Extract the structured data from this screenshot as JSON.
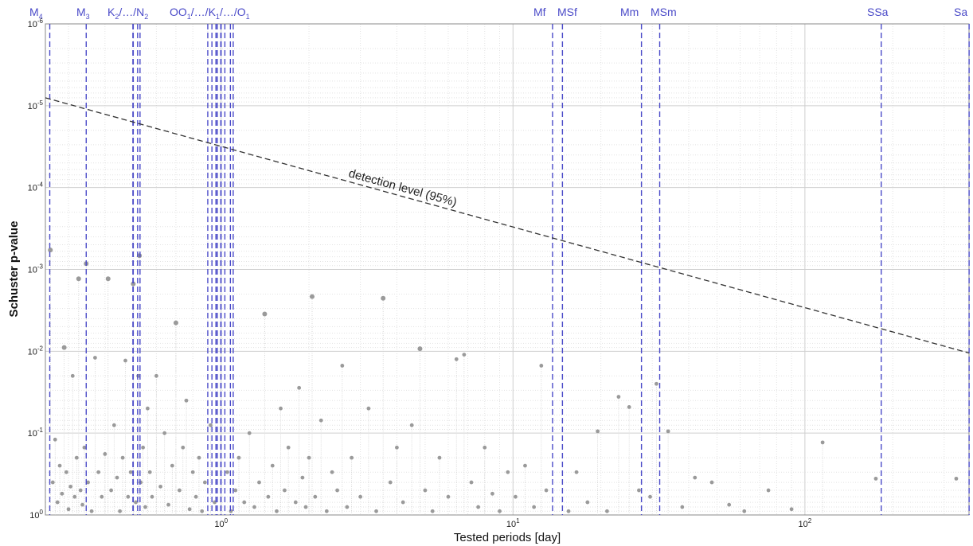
{
  "chart_data": {
    "type": "scatter",
    "title": "",
    "xlabel": "Tested periods [day]",
    "ylabel": "Schuster p-value",
    "x_scale": "log",
    "y_scale": "log",
    "y_reversed": true,
    "xlim": [
      0.25,
      365
    ],
    "ylim": [
      1e-06,
      1
    ],
    "grid": true,
    "x_ticks": [
      {
        "value": 1,
        "base": "10",
        "exp": "0"
      },
      {
        "value": 10,
        "base": "10",
        "exp": "1"
      },
      {
        "value": 100,
        "base": "10",
        "exp": "2"
      }
    ],
    "y_ticks": [
      {
        "value": 1e-06,
        "base": "10",
        "exp": "-6"
      },
      {
        "value": 1e-05,
        "base": "10",
        "exp": "-5"
      },
      {
        "value": 0.0001,
        "base": "10",
        "exp": "-4"
      },
      {
        "value": 0.001,
        "base": "10",
        "exp": "-3"
      },
      {
        "value": 0.01,
        "base": "10",
        "exp": "-2"
      },
      {
        "value": 0.1,
        "base": "10",
        "exp": "-1"
      },
      {
        "value": 1,
        "base": "10",
        "exp": "0"
      }
    ],
    "detection_level": {
      "label": "detection level (95%)",
      "x": [
        0.25,
        365
      ],
      "y": [
        8e-06,
        0.0105
      ],
      "color": "#333333"
    },
    "constituents": {
      "color": "#4a4ac8",
      "lines": [
        {
          "label": "M4",
          "base": "M",
          "sub": "4",
          "periods": [
            0.2588
          ]
        },
        {
          "label": "M3",
          "base": "M",
          "sub": "3",
          "periods": [
            0.345
          ]
        },
        {
          "label": "K2/.../N2",
          "base": "K",
          "sub": "2",
          "suffix": "/…/N",
          "sub2": "2",
          "periods": [
            0.4986,
            0.5,
            0.5175,
            0.5274
          ]
        },
        {
          "label": "OO1/.../K1/.../O1",
          "base": "OO",
          "sub": "1",
          "suffix": "/…/K",
          "sub2": "1",
          "suffix2": "/…/O",
          "sub3": "1",
          "periods": [
            0.9,
            0.93,
            0.96,
            0.97,
            0.9973,
            1.0,
            1.03,
            1.076,
            1.1
          ]
        },
        {
          "label": "Mf",
          "periods": [
            13.66
          ]
        },
        {
          "label": "MSf",
          "periods": [
            14.77
          ]
        },
        {
          "label": "Mm",
          "periods": [
            27.55
          ]
        },
        {
          "label": "MSm",
          "periods": [
            31.81
          ]
        },
        {
          "label": "SSa",
          "periods": [
            182.6
          ]
        },
        {
          "label": "Sa",
          "periods": [
            365.25
          ]
        }
      ]
    },
    "series": [
      {
        "color": "#9a9a9a",
        "points": [
          [
            0.26,
            0.00058
          ],
          [
            0.265,
            0.4
          ],
          [
            0.27,
            0.12
          ],
          [
            0.275,
            0.7
          ],
          [
            0.28,
            0.25
          ],
          [
            0.285,
            0.55
          ],
          [
            0.29,
            0.009
          ],
          [
            0.295,
            0.3
          ],
          [
            0.3,
            0.85
          ],
          [
            0.305,
            0.45
          ],
          [
            0.31,
            0.02
          ],
          [
            0.315,
            0.6
          ],
          [
            0.32,
            0.2
          ],
          [
            0.325,
            0.0013
          ],
          [
            0.33,
            0.5
          ],
          [
            0.335,
            0.75
          ],
          [
            0.34,
            0.15
          ],
          [
            0.345,
            0.00085
          ],
          [
            0.35,
            0.4
          ],
          [
            0.36,
            0.9
          ],
          [
            0.37,
            0.012
          ],
          [
            0.38,
            0.3
          ],
          [
            0.39,
            0.6
          ],
          [
            0.4,
            0.18
          ],
          [
            0.41,
            0.0013
          ],
          [
            0.42,
            0.5
          ],
          [
            0.43,
            0.08
          ],
          [
            0.44,
            0.35
          ],
          [
            0.45,
            0.9
          ],
          [
            0.46,
            0.2
          ],
          [
            0.47,
            0.013
          ],
          [
            0.48,
            0.6
          ],
          [
            0.49,
            0.3
          ],
          [
            0.5,
            0.0015
          ],
          [
            0.51,
            0.7
          ],
          [
            0.52,
            0.02
          ],
          [
            0.525,
            0.00068
          ],
          [
            0.53,
            0.4
          ],
          [
            0.54,
            0.15
          ],
          [
            0.55,
            0.8
          ],
          [
            0.56,
            0.05
          ],
          [
            0.57,
            0.3
          ],
          [
            0.58,
            0.6
          ],
          [
            0.6,
            0.02
          ],
          [
            0.62,
            0.45
          ],
          [
            0.64,
            0.1
          ],
          [
            0.66,
            0.75
          ],
          [
            0.68,
            0.25
          ],
          [
            0.7,
            0.0045
          ],
          [
            0.72,
            0.5
          ],
          [
            0.74,
            0.15
          ],
          [
            0.76,
            0.04
          ],
          [
            0.78,
            0.85
          ],
          [
            0.8,
            0.3
          ],
          [
            0.82,
            0.6
          ],
          [
            0.84,
            0.2
          ],
          [
            0.86,
            0.9
          ],
          [
            0.88,
            0.4
          ],
          [
            0.92,
            0.08
          ],
          [
            0.95,
            0.7
          ],
          [
            1.05,
            0.3
          ],
          [
            1.08,
            0.9
          ],
          [
            1.12,
            0.5
          ],
          [
            1.15,
            0.2
          ],
          [
            1.2,
            0.7
          ],
          [
            1.25,
            0.1
          ],
          [
            1.3,
            0.8
          ],
          [
            1.35,
            0.4
          ],
          [
            1.41,
            0.0035
          ],
          [
            1.45,
            0.6
          ],
          [
            1.5,
            0.25
          ],
          [
            1.55,
            0.9
          ],
          [
            1.6,
            0.05
          ],
          [
            1.65,
            0.5
          ],
          [
            1.7,
            0.15
          ],
          [
            1.8,
            0.7
          ],
          [
            1.85,
            0.028
          ],
          [
            1.9,
            0.35
          ],
          [
            1.95,
            0.8
          ],
          [
            2.0,
            0.2
          ],
          [
            2.05,
            0.00215
          ],
          [
            2.1,
            0.6
          ],
          [
            2.2,
            0.07
          ],
          [
            2.3,
            0.9
          ],
          [
            2.4,
            0.3
          ],
          [
            2.5,
            0.5
          ],
          [
            2.6,
            0.015
          ],
          [
            2.7,
            0.8
          ],
          [
            2.8,
            0.2
          ],
          [
            3.0,
            0.6
          ],
          [
            3.2,
            0.05
          ],
          [
            3.4,
            0.9
          ],
          [
            3.59,
            0.00225
          ],
          [
            3.8,
            0.4
          ],
          [
            4.0,
            0.15
          ],
          [
            4.2,
            0.7
          ],
          [
            4.5,
            0.08
          ],
          [
            4.8,
            0.0093
          ],
          [
            5.0,
            0.5
          ],
          [
            5.3,
            0.9
          ],
          [
            5.6,
            0.2
          ],
          [
            6.0,
            0.6
          ],
          [
            6.4,
            0.0125
          ],
          [
            6.8,
            0.011
          ],
          [
            7.2,
            0.4
          ],
          [
            7.6,
            0.8
          ],
          [
            8.0,
            0.15
          ],
          [
            8.5,
            0.55
          ],
          [
            9.0,
            0.9
          ],
          [
            9.6,
            0.3
          ],
          [
            10.2,
            0.6
          ],
          [
            11.0,
            0.25
          ],
          [
            11.8,
            0.8
          ],
          [
            12.5,
            0.015
          ],
          [
            13.0,
            0.5
          ],
          [
            15.5,
            0.9
          ],
          [
            16.5,
            0.3
          ],
          [
            18.0,
            0.7
          ],
          [
            19.5,
            0.095
          ],
          [
            21.0,
            0.9
          ],
          [
            23.0,
            0.036
          ],
          [
            25.0,
            0.048
          ],
          [
            27.0,
            0.5
          ],
          [
            29.5,
            0.6
          ],
          [
            31.0,
            0.025
          ],
          [
            34.0,
            0.095
          ],
          [
            38.0,
            0.8
          ],
          [
            42.0,
            0.35
          ],
          [
            48.0,
            0.4
          ],
          [
            55.0,
            0.75
          ],
          [
            62.0,
            0.9
          ],
          [
            75.0,
            0.5
          ],
          [
            90.0,
            0.85
          ],
          [
            115.0,
            0.13
          ],
          [
            175.0,
            0.36
          ],
          [
            330.0,
            0.36
          ]
        ]
      }
    ]
  }
}
